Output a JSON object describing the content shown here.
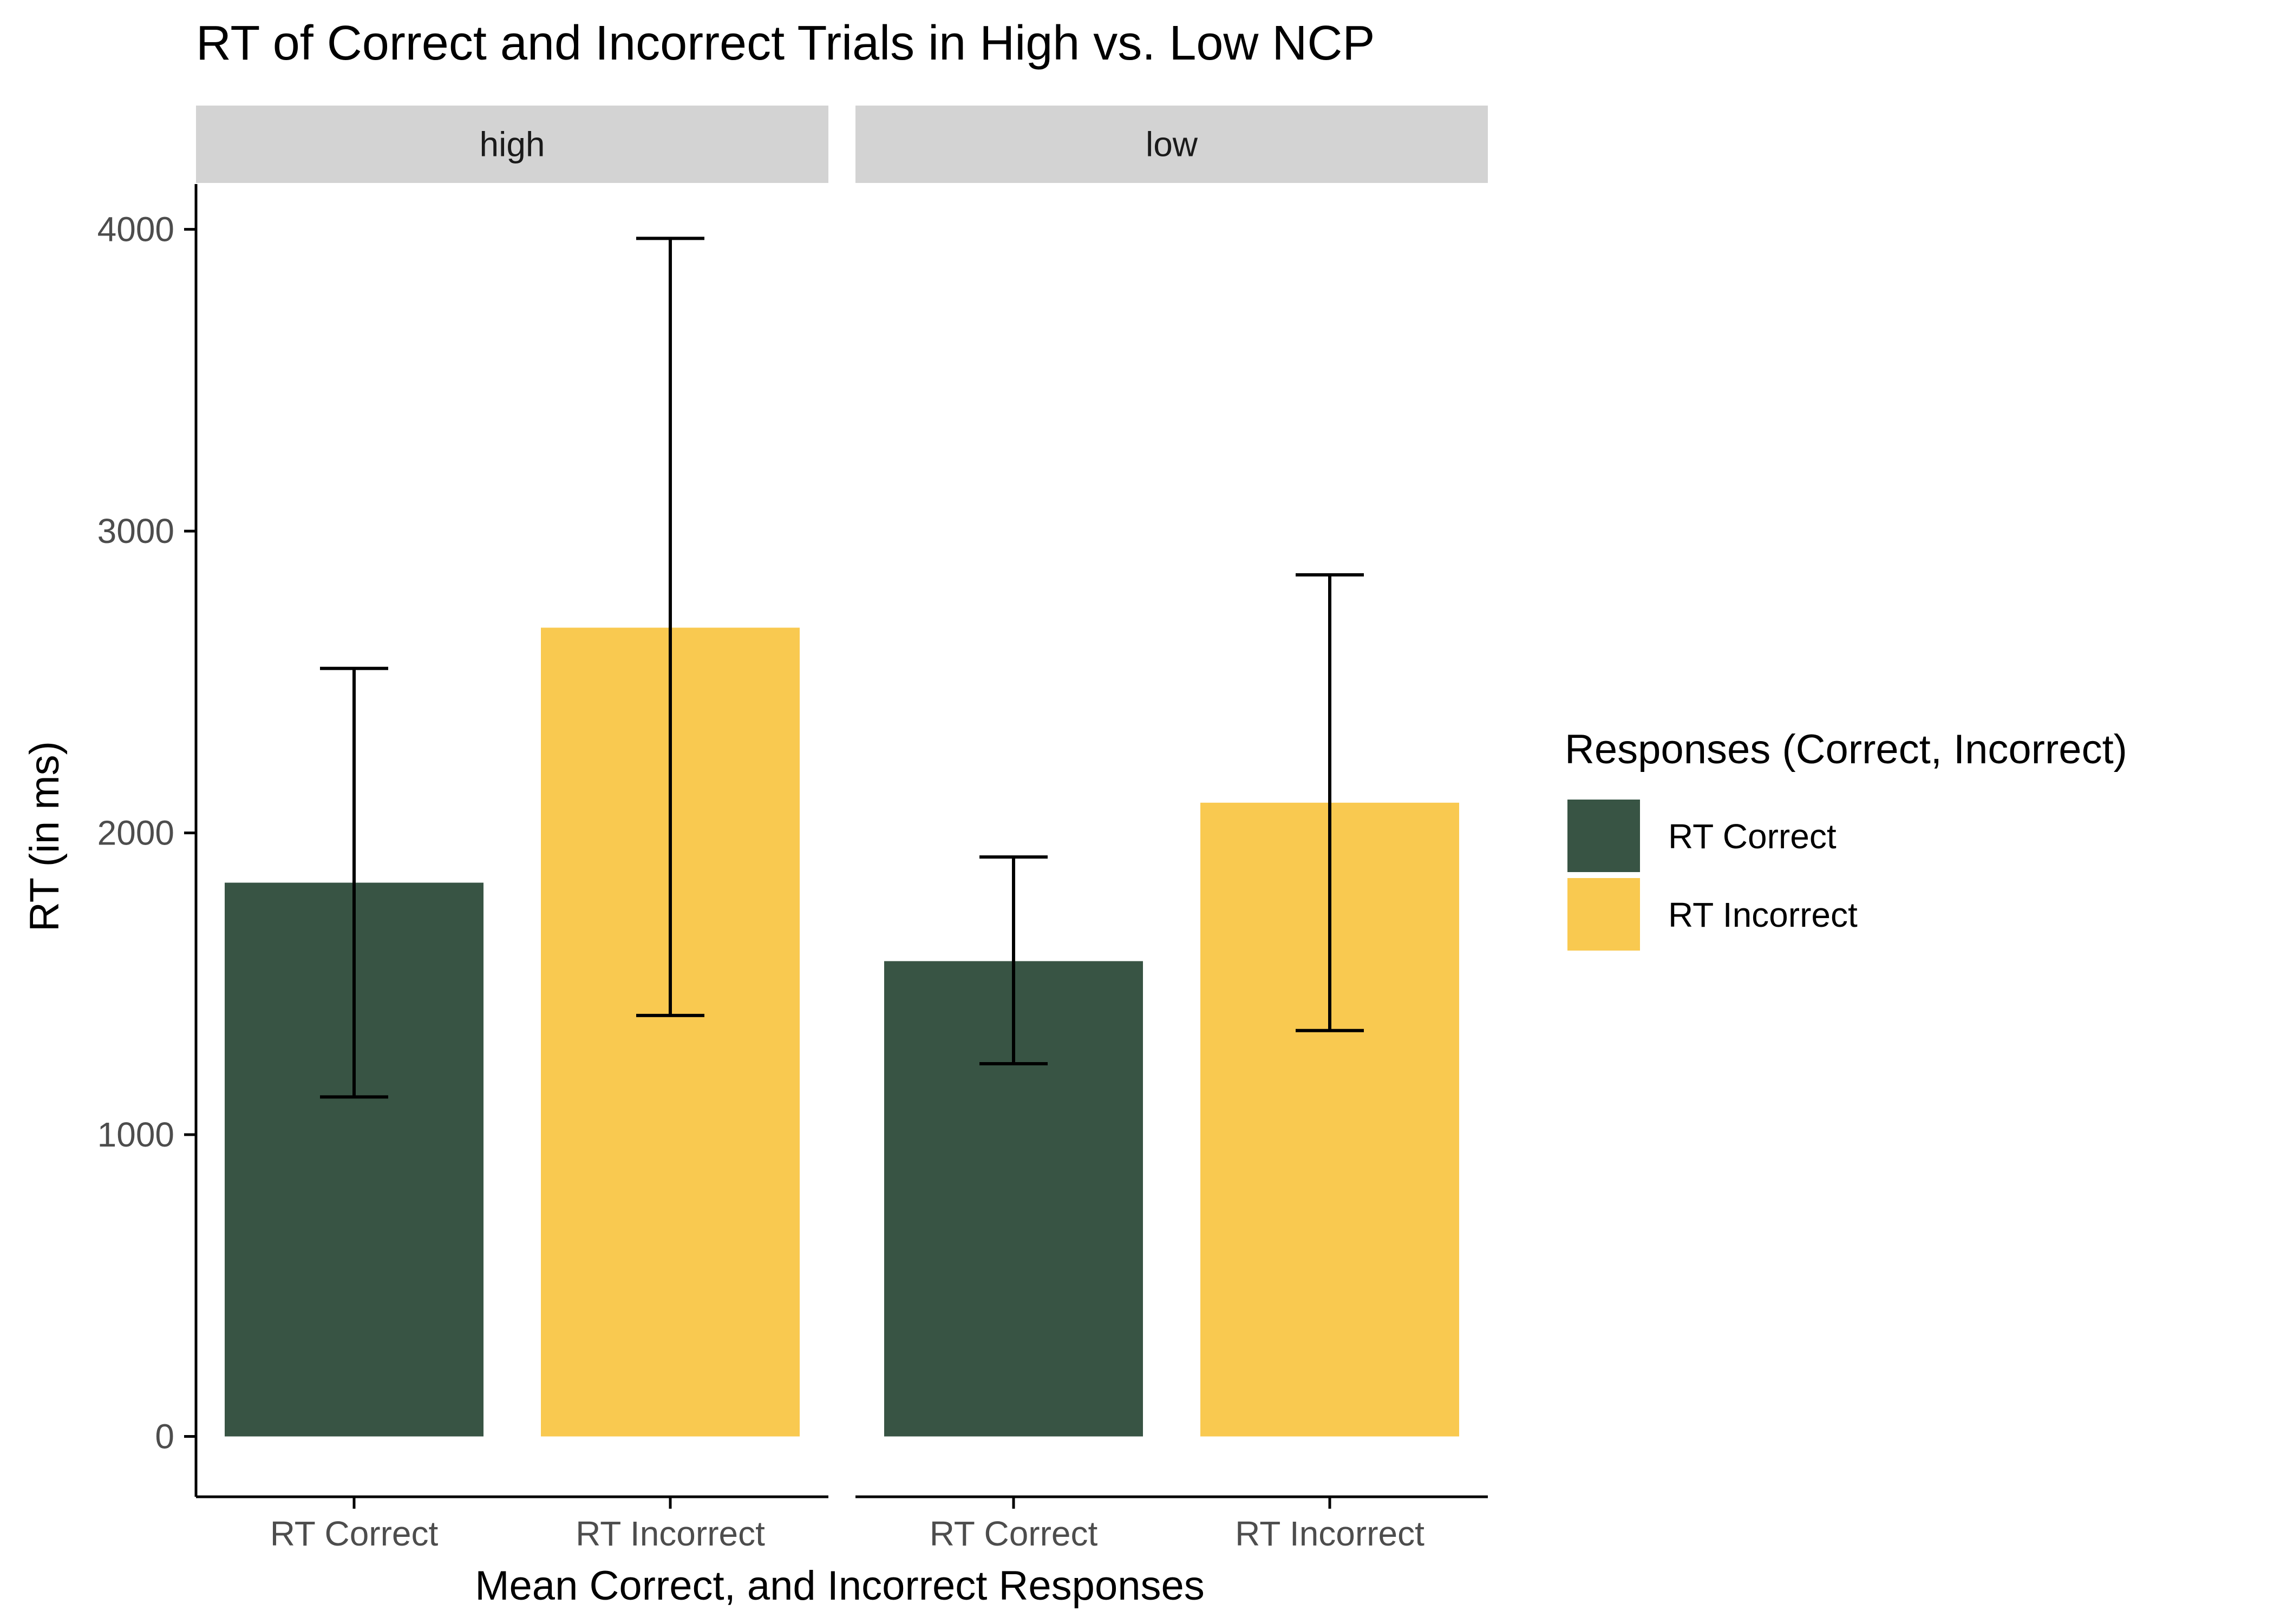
{
  "chart_data": {
    "type": "bar",
    "title": "RT of Correct and Incorrect Trials in High vs. Low NCP",
    "xlabel": "Mean Correct, and Incorrect Responses",
    "ylabel": "RT (in ms)",
    "ylim": [
      -200,
      4150
    ],
    "yticks": [
      0,
      1000,
      2000,
      3000,
      4000
    ],
    "grid": false,
    "legend": {
      "title": "Responses (Correct, Incorrect)",
      "position": "right",
      "entries": [
        "RT Correct",
        "RT Incorrect"
      ]
    },
    "categories": [
      "RT Correct",
      "RT Incorrect"
    ],
    "colors": {
      "RT Correct": "#385444",
      "RT Incorrect": "#f9c950"
    },
    "facets": [
      {
        "label": "high",
        "bars": [
          {
            "category": "RT Correct",
            "value": 1835,
            "error_low": 1125,
            "error_high": 2545
          },
          {
            "category": "RT Incorrect",
            "value": 2680,
            "error_low": 1395,
            "error_high": 3970
          }
        ]
      },
      {
        "label": "low",
        "bars": [
          {
            "category": "RT Correct",
            "value": 1575,
            "error_low": 1235,
            "error_high": 1920
          },
          {
            "category": "RT Incorrect",
            "value": 2100,
            "error_low": 1345,
            "error_high": 2855
          }
        ]
      }
    ]
  }
}
